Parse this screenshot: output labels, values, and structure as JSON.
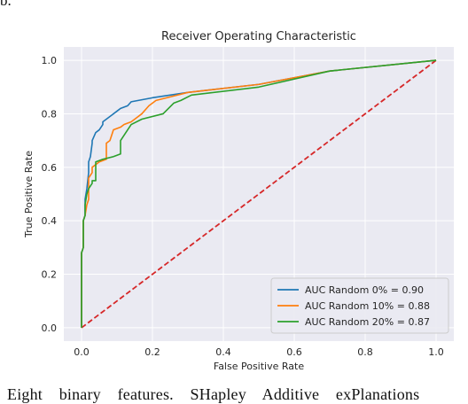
{
  "page": {
    "top_fragment": "b.",
    "bottom_fragment": "Eight binary features. SHapley Additive exPlanations"
  },
  "chart_data": {
    "type": "line",
    "title": "Receiver Operating Characteristic",
    "xlabel": "False Positive Rate",
    "ylabel": "True Positive Rate",
    "xlim": [
      -0.05,
      1.05
    ],
    "ylim": [
      -0.05,
      1.05
    ],
    "xticks": [
      0.0,
      0.2,
      0.4,
      0.6,
      0.8,
      1.0
    ],
    "yticks": [
      0.0,
      0.2,
      0.4,
      0.6,
      0.8,
      1.0
    ],
    "xtick_labels": [
      "0.0",
      "0.2",
      "0.4",
      "0.6",
      "0.8",
      "1.0"
    ],
    "ytick_labels": [
      "0.0",
      "0.2",
      "0.4",
      "0.6",
      "0.8",
      "1.0"
    ],
    "grid": true,
    "background": "#eaeaf2",
    "legend_position": "lower-right",
    "series": [
      {
        "name": "AUC Random 0% = 0.90",
        "color": "#1f77b4",
        "x": [
          0.0,
          0.0,
          0.005,
          0.005,
          0.01,
          0.01,
          0.015,
          0.02,
          0.02,
          0.025,
          0.03,
          0.03,
          0.04,
          0.05,
          0.06,
          0.06,
          0.08,
          0.1,
          0.11,
          0.13,
          0.14,
          0.2,
          0.3,
          0.5,
          0.7,
          1.0
        ],
        "y": [
          0.0,
          0.28,
          0.3,
          0.4,
          0.42,
          0.48,
          0.52,
          0.58,
          0.62,
          0.64,
          0.69,
          0.7,
          0.73,
          0.74,
          0.76,
          0.77,
          0.79,
          0.81,
          0.82,
          0.83,
          0.845,
          0.86,
          0.88,
          0.91,
          0.96,
          1.0
        ]
      },
      {
        "name": "AUC Random 10% = 0.88",
        "color": "#ff7f0e",
        "x": [
          0.0,
          0.0,
          0.005,
          0.005,
          0.01,
          0.015,
          0.02,
          0.02,
          0.03,
          0.03,
          0.05,
          0.07,
          0.07,
          0.08,
          0.09,
          0.11,
          0.12,
          0.14,
          0.15,
          0.17,
          0.19,
          0.21,
          0.24,
          0.3,
          0.5,
          0.7,
          1.0
        ],
        "y": [
          0.0,
          0.28,
          0.3,
          0.4,
          0.42,
          0.46,
          0.48,
          0.56,
          0.58,
          0.6,
          0.62,
          0.63,
          0.69,
          0.7,
          0.74,
          0.75,
          0.76,
          0.77,
          0.78,
          0.8,
          0.83,
          0.85,
          0.86,
          0.88,
          0.91,
          0.96,
          1.0
        ]
      },
      {
        "name": "AUC Random 20% = 0.87",
        "color": "#2ca02c",
        "x": [
          0.0,
          0.0,
          0.005,
          0.005,
          0.01,
          0.01,
          0.015,
          0.02,
          0.03,
          0.03,
          0.04,
          0.04,
          0.06,
          0.09,
          0.11,
          0.11,
          0.13,
          0.14,
          0.17,
          0.23,
          0.26,
          0.28,
          0.31,
          0.5,
          0.7,
          1.0
        ],
        "y": [
          0.0,
          0.28,
          0.3,
          0.4,
          0.42,
          0.46,
          0.5,
          0.52,
          0.54,
          0.55,
          0.55,
          0.62,
          0.63,
          0.64,
          0.65,
          0.7,
          0.74,
          0.76,
          0.78,
          0.8,
          0.84,
          0.85,
          0.87,
          0.9,
          0.96,
          1.0
        ]
      },
      {
        "name": "",
        "color": "#d62728",
        "style": "dashed",
        "x": [
          0.0,
          1.0
        ],
        "y": [
          0.0,
          1.0
        ]
      }
    ]
  }
}
